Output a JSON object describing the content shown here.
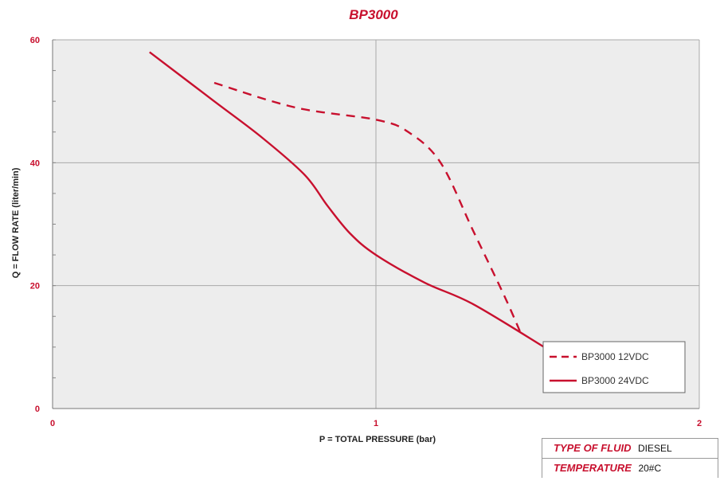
{
  "chart_data": {
    "type": "line",
    "title": "BP3000",
    "xlabel": "P = TOTAL PRESSURE (bar)",
    "ylabel": "Q = FLOW RATE (liter/min)",
    "xlim": [
      0,
      2
    ],
    "ylim": [
      0,
      60
    ],
    "xticks": [
      "0",
      "1",
      "2"
    ],
    "yticks": [
      "0",
      "20",
      "40",
      "60"
    ],
    "grid": true,
    "legend_position": "bottom-right",
    "series": [
      {
        "name": "BP3000 12VDC",
        "style": "dashed",
        "color": "#c8102e",
        "x": [
          0.5,
          0.75,
          1.0,
          1.1,
          1.2,
          1.3,
          1.4,
          1.45
        ],
        "y": [
          53,
          49,
          47,
          45,
          40,
          29,
          18,
          12
        ]
      },
      {
        "name": "BP3000 24VDC",
        "style": "solid",
        "color": "#c8102e",
        "x": [
          0.3,
          0.5,
          0.65,
          0.78,
          0.85,
          0.92,
          1.0,
          1.15,
          1.3,
          1.52
        ],
        "y": [
          58,
          50,
          44,
          38,
          33,
          28.5,
          25,
          20.5,
          17,
          10
        ]
      }
    ]
  },
  "info_table": [
    {
      "key": "TYPE OF FLUID",
      "value": "DIESEL"
    },
    {
      "key": "TEMPERATURE",
      "value": "20#C"
    }
  ],
  "colors": {
    "accent": "#c8102e",
    "plot_background": "#ededed",
    "grid": "#a9a9a9"
  }
}
